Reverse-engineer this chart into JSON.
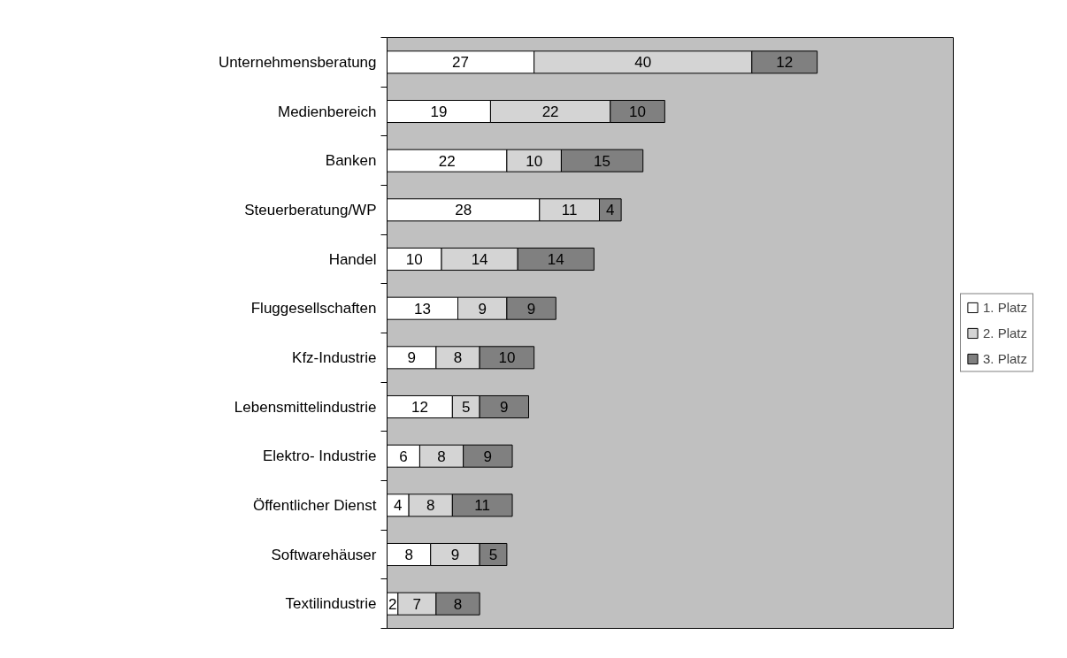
{
  "chart_data": {
    "type": "bar",
    "orientation": "horizontal",
    "stacked": true,
    "data_labels": true,
    "legend": "right",
    "grid": false,
    "xlim": [
      0,
      104
    ],
    "tick_labels": "y",
    "categories": [
      "Unternehmensberatung",
      "Medienbereich",
      "Banken",
      "Steuerberatung/WP",
      "Handel",
      "Fluggesellschaften",
      "Kfz-Industrie",
      "Lebensmittelindustrie",
      "Elektro- Industrie",
      "Öffentlicher Dienst",
      "Softwarehäuser",
      "Textilindustrie"
    ],
    "series": [
      {
        "name": "1. Platz",
        "color": "#ffffff",
        "values": [
          27,
          19,
          22,
          28,
          10,
          13,
          9,
          12,
          6,
          4,
          8,
          2
        ]
      },
      {
        "name": "2. Platz",
        "color": "#d4d4d4",
        "values": [
          40,
          22,
          10,
          11,
          14,
          9,
          8,
          5,
          8,
          8,
          9,
          7
        ]
      },
      {
        "name": "3. Platz",
        "color": "#808080",
        "values": [
          12,
          10,
          15,
          4,
          14,
          9,
          10,
          9,
          9,
          11,
          5,
          8
        ]
      }
    ]
  }
}
